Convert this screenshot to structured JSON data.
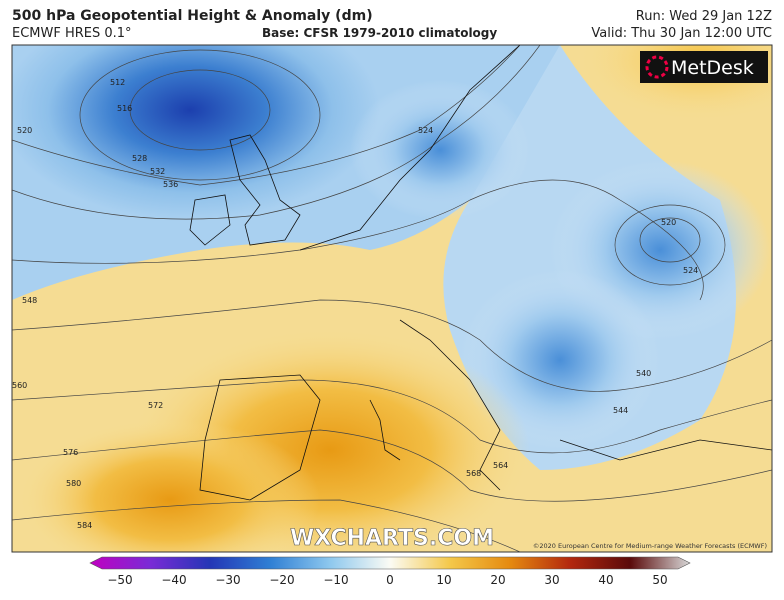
{
  "header": {
    "title": "500 hPa Geopotential Height & Anomaly (dm)",
    "model": "ECMWF HRES 0.1°",
    "base": "Base: CFSR 1979-2010 climatology",
    "run": "Run: Wed 29 Jan 12Z",
    "valid": "Valid: Thu 30 Jan 12:00 UTC"
  },
  "logo": "MetDesk",
  "watermark": "WXCHARTS.COM",
  "copyright": "©2020 European Centre for Medium-range Weather Forecasts (ECMWF)",
  "contour_labels": [
    "512",
    "516",
    "520",
    "528",
    "532",
    "536",
    "524",
    "520",
    "524",
    "548",
    "560",
    "572",
    "576",
    "580",
    "584",
    "540",
    "544",
    "564",
    "568"
  ],
  "colorbar_ticks": [
    "−50",
    "−40",
    "−30",
    "−20",
    "−10",
    "0",
    "10",
    "20",
    "30",
    "40",
    "50"
  ]
}
